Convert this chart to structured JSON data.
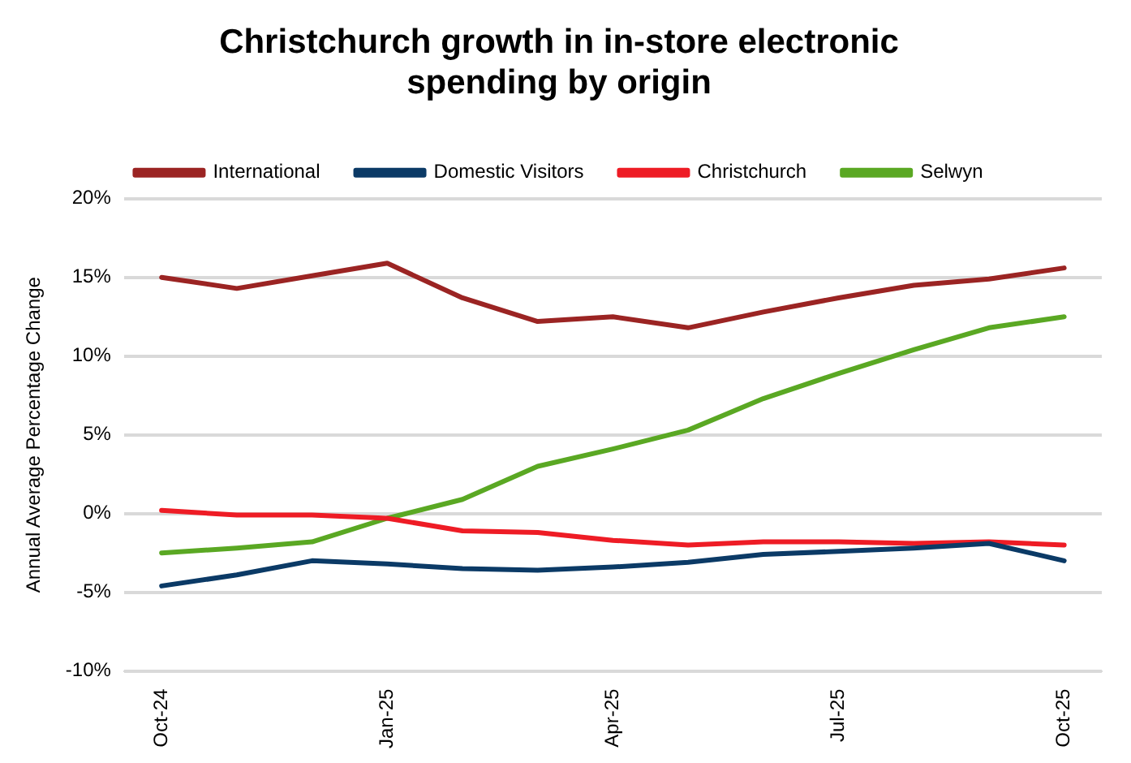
{
  "chart_data": {
    "type": "line",
    "title": "Christchurch growth in in-store electronic spending by origin",
    "ylabel": "Annual Average Percentage Change",
    "categories": [
      "Oct-24",
      null,
      null,
      "Jan-25",
      null,
      null,
      "Apr-25",
      null,
      null,
      "Jul-25",
      null,
      null,
      "Oct-25"
    ],
    "series": [
      {
        "name": "International",
        "color": "#9b2423",
        "values": [
          15.0,
          14.3,
          15.1,
          15.9,
          13.7,
          12.2,
          12.5,
          11.8,
          12.8,
          13.7,
          14.5,
          14.9,
          15.6
        ]
      },
      {
        "name": "Domestic Visitors",
        "color": "#0b3a66",
        "values": [
          -4.6,
          -3.9,
          -3.0,
          -3.2,
          -3.5,
          -3.6,
          -3.4,
          -3.1,
          -2.6,
          -2.4,
          -2.2,
          -1.9,
          -3.0
        ]
      },
      {
        "name": "Christchurch",
        "color": "#ee1c25",
        "values": [
          0.2,
          -0.1,
          -0.1,
          -0.3,
          -1.1,
          -1.2,
          -1.7,
          -2.0,
          -1.8,
          -1.8,
          -1.9,
          -1.8,
          -2.0
        ]
      },
      {
        "name": "Selwyn",
        "color": "#5aa823",
        "values": [
          -2.5,
          -2.2,
          -1.8,
          -0.3,
          0.9,
          3.0,
          4.1,
          5.3,
          7.3,
          8.9,
          10.4,
          11.8,
          12.5
        ]
      }
    ],
    "ylim": [
      -10,
      20
    ],
    "yticks": [
      {
        "value": -10,
        "label": "-10%"
      },
      {
        "value": -5,
        "label": "-5%"
      },
      {
        "value": 0,
        "label": "0%"
      },
      {
        "value": 5,
        "label": "5%"
      },
      {
        "value": 10,
        "label": "10%"
      },
      {
        "value": 15,
        "label": "15%"
      },
      {
        "value": 20,
        "label": "20%"
      }
    ],
    "grid": "y",
    "legend": "top",
    "marker": "none",
    "line_style": "solid"
  }
}
